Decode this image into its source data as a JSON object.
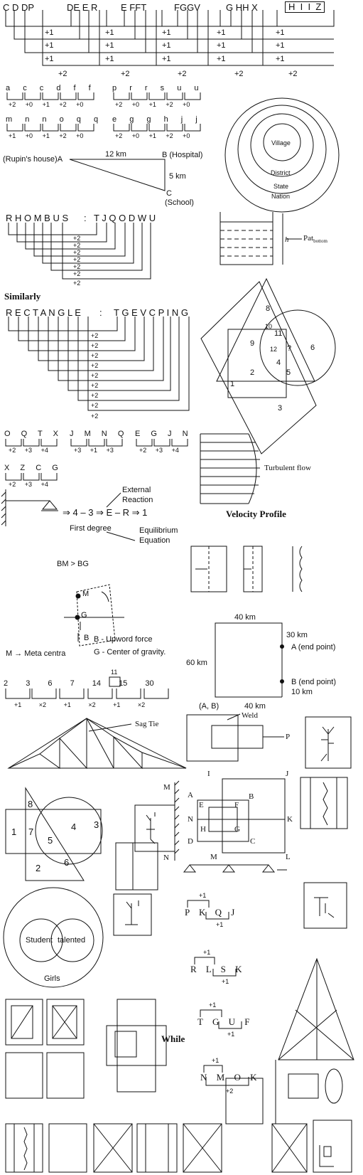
{
  "p1": {
    "letters": [
      "C",
      "D",
      "D",
      "P",
      "D",
      "E",
      "E",
      "R",
      "E",
      "F",
      "F",
      "T",
      "F",
      "G",
      "G",
      "V",
      "G",
      "H",
      "H",
      "X"
    ],
    "answer": [
      "H",
      "I",
      "I",
      "Z"
    ],
    "inner": [
      "+1",
      "+1",
      "+1",
      "+1",
      "+1"
    ],
    "outer": "+2"
  },
  "p2": {
    "rowA": [
      "a",
      "c",
      "c",
      "d",
      "f",
      "f"
    ],
    "rowA_ops": [
      "+2",
      "+0",
      "+1",
      "+2",
      "+0"
    ],
    "rowB": [
      "p",
      "r",
      "r",
      "s",
      "u",
      "u"
    ],
    "rowB_ops": [
      "+2",
      "+0",
      "+1",
      "+2",
      "+0"
    ],
    "rowC": [
      "m",
      "n",
      "n",
      "o",
      "q",
      "q"
    ],
    "rowC_ops": [
      "+1",
      "+0",
      "+1",
      "+2",
      "+0"
    ],
    "rowD": [
      "e",
      "g",
      "g",
      "h",
      "j",
      "j"
    ],
    "rowD_ops": [
      "+2",
      "+0",
      "+1",
      "+2",
      "+0"
    ]
  },
  "circles": {
    "village": "Village",
    "district": "District",
    "state": "State",
    "nation": "Nation"
  },
  "triangle": {
    "rupin": "(Rupin's house)",
    "a": "A",
    "d12": "12 km",
    "b": "B (Hospital)",
    "d5": "5 km",
    "c": "C",
    "school": "(School)"
  },
  "rhombus": {
    "left": "R H O M B U S",
    "sep": ":",
    "right": "T J Q O D W U",
    "op": "+2"
  },
  "tank": {
    "h": "h",
    "pat": "Pat",
    "bottom": "bottom"
  },
  "similarly": "Similarly",
  "rectangle": {
    "left": "R E C T A N G L E",
    "sep": ":",
    "right": "T G E V C P I N G",
    "op": "+2"
  },
  "venn_shapes": [
    "8",
    "10",
    "11",
    "9",
    "12",
    "?",
    "6",
    "4",
    "2",
    "5",
    "1",
    "3"
  ],
  "p3": {
    "rowA": [
      "O",
      "Q",
      "T",
      "X"
    ],
    "rowA_ops": [
      "+2",
      "+3",
      "+4"
    ],
    "rowB": [
      "J",
      "M",
      "N",
      "Q"
    ],
    "rowB_ops": [
      "+3",
      "+1",
      "+3"
    ],
    "rowC": [
      "E",
      "G",
      "J",
      "N"
    ],
    "rowC_ops": [
      "+2",
      "+3",
      "+4"
    ],
    "rowD": [
      "X",
      "Z",
      "C",
      "G"
    ],
    "rowD_ops": [
      "+2",
      "+3",
      "+4"
    ]
  },
  "turbulent": "Turbulent flow",
  "velocity_profile": "Velocity Profile",
  "degree": {
    "external": "External",
    "reaction": "Reaction",
    "chain": "⇒ 4 – 3 ⇒ E – R ⇒ 1",
    "first": "First degree",
    "eq1": "Equilibrium",
    "eq2": "Equation"
  },
  "buoyancy": {
    "bm": "BM > BG",
    "m": "M",
    "g": "G",
    "b": "B",
    "b_desc": "B - Upword force",
    "g_desc": "G - Center of gravity.",
    "meta": "M → Meta centra"
  },
  "route": {
    "d40top": "40 km",
    "d30": "30 km",
    "a_end": "A (end point)",
    "d60": "60 km",
    "b_end": "B (end point)",
    "d10": "10 km",
    "ab": "(A, B)",
    "d40bot": "40 km"
  },
  "series": {
    "nums": [
      "2",
      "3",
      "6",
      "7",
      "14",
      "15",
      "30"
    ],
    "above": "11",
    "ops": [
      "+1",
      "×2",
      "+1",
      "×2",
      "+1",
      "×2"
    ]
  },
  "truss": "Sag Tie",
  "weld": {
    "weld": "Weld",
    "p": "P"
  },
  "square_labels": [
    "I",
    "J",
    "A",
    "B",
    "E",
    "F",
    "N",
    "K",
    "H",
    "G",
    "D",
    "C",
    "M",
    "L"
  ],
  "venn_bottom": [
    "8",
    "1",
    "7",
    "5",
    "4",
    "3",
    "2",
    "6"
  ],
  "mirror_m": "M",
  "mirror_n": "N",
  "pkqj": {
    "letters": [
      "P",
      "K",
      "Q",
      "J"
    ],
    "top": "+1",
    "bot": "+1"
  },
  "rlsk": {
    "letters": [
      "R",
      "L",
      "S",
      "K"
    ],
    "top": "+1",
    "bot": "+1"
  },
  "tguf": {
    "letters": [
      "T",
      "G",
      "U",
      "F"
    ],
    "top": "+1",
    "bot": "+1"
  },
  "nmok": {
    "letters": [
      "N",
      "M",
      "O",
      "K"
    ],
    "top": "+1",
    "bot": "+2"
  },
  "students": {
    "student": "Student",
    "talented": "talented",
    "girls": "Girls"
  },
  "while": "While"
}
